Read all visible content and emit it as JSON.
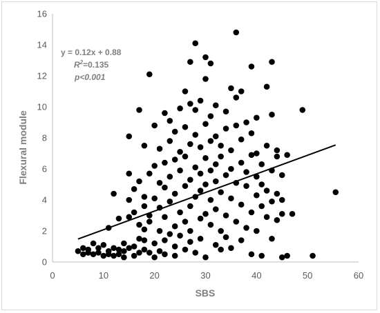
{
  "chart_data": {
    "type": "scatter",
    "title": "",
    "xlabel": "SBS",
    "ylabel": "Flexural module",
    "xlim": [
      0,
      60
    ],
    "ylim": [
      0,
      16
    ],
    "x_ticks": [
      "0",
      "10",
      "20",
      "30",
      "40",
      "50",
      "60"
    ],
    "y_ticks": [
      "0",
      "2",
      "4",
      "6",
      "8",
      "10",
      "12",
      "14",
      "16"
    ],
    "grid": false,
    "legend": "none",
    "point_color": "#000000",
    "trendline": {
      "type": "linear",
      "slope": 0.12,
      "intercept": 0.88,
      "x_range": [
        5,
        55.5
      ],
      "color": "#000000"
    },
    "annotation": {
      "equation": "y = 0.12x + 0.88",
      "r2_label": "R",
      "r2_sup": "2",
      "r2_value": "=0.135",
      "p_value": "p<0.001"
    },
    "points": [
      [
        5,
        0.7
      ],
      [
        6,
        0.9
      ],
      [
        6,
        0.5
      ],
      [
        7,
        0.8
      ],
      [
        7,
        0.6
      ],
      [
        8,
        1.2
      ],
      [
        8,
        0.5
      ],
      [
        9,
        0.9
      ],
      [
        9,
        0.6
      ],
      [
        10,
        1.1
      ],
      [
        10,
        0.4
      ],
      [
        11,
        0.7
      ],
      [
        11,
        0.5
      ],
      [
        11,
        2.2
      ],
      [
        12,
        0.9
      ],
      [
        12,
        0.4
      ],
      [
        12,
        4.4
      ],
      [
        13,
        0.8
      ],
      [
        13,
        0.5
      ],
      [
        13,
        2.8
      ],
      [
        14,
        0.7
      ],
      [
        14,
        0.3
      ],
      [
        14,
        1.2
      ],
      [
        15,
        0.9
      ],
      [
        15,
        2.9
      ],
      [
        15,
        4.0
      ],
      [
        15,
        5.7
      ],
      [
        15,
        8.1
      ],
      [
        16,
        1.0
      ],
      [
        16,
        0.4
      ],
      [
        16,
        3.2
      ],
      [
        16,
        4.7
      ],
      [
        17,
        1.5
      ],
      [
        17,
        0.6
      ],
      [
        17,
        5.2
      ],
      [
        17,
        9.8
      ],
      [
        17,
        2.4
      ],
      [
        18,
        0.8
      ],
      [
        18,
        2.1
      ],
      [
        18,
        3.6
      ],
      [
        18,
        7.5
      ],
      [
        18,
        4.2
      ],
      [
        18,
        1.4
      ],
      [
        19,
        12.1
      ],
      [
        19,
        3.0
      ],
      [
        19,
        5.7
      ],
      [
        19,
        0.6
      ],
      [
        19,
        2.6
      ],
      [
        20,
        1.2
      ],
      [
        20,
        4.1
      ],
      [
        20,
        6.2
      ],
      [
        20,
        8.8
      ],
      [
        20,
        0.3
      ],
      [
        21,
        2.0
      ],
      [
        21,
        3.5
      ],
      [
        21,
        5.1
      ],
      [
        21,
        7.3
      ],
      [
        21,
        0.7
      ],
      [
        22,
        1.4
      ],
      [
        22,
        4.8
      ],
      [
        22,
        6.4
      ],
      [
        22,
        9.6
      ],
      [
        22,
        2.9
      ],
      [
        22,
        0.5
      ],
      [
        23,
        1.8
      ],
      [
        23,
        3.9
      ],
      [
        23,
        5.5
      ],
      [
        23,
        7.8
      ],
      [
        23,
        9.1
      ],
      [
        24,
        0.4
      ],
      [
        24,
        2.3
      ],
      [
        24,
        4.4
      ],
      [
        24,
        6.6
      ],
      [
        24,
        8.4
      ],
      [
        24,
        1.0
      ],
      [
        25,
        9.9
      ],
      [
        25,
        3.2
      ],
      [
        25,
        5.9
      ],
      [
        25,
        7.1
      ],
      [
        25,
        1.7
      ],
      [
        26,
        11.0
      ],
      [
        26,
        2.6
      ],
      [
        26,
        4.9
      ],
      [
        26,
        6.8
      ],
      [
        26,
        8.7
      ],
      [
        26,
        0.8
      ],
      [
        27,
        10.2
      ],
      [
        27,
        3.6
      ],
      [
        27,
        5.3
      ],
      [
        27,
        7.6
      ],
      [
        27,
        1.3
      ],
      [
        27,
        2.0
      ],
      [
        27,
        12.9
      ],
      [
        28,
        14.1
      ],
      [
        28,
        4.2
      ],
      [
        28,
        6.1
      ],
      [
        28,
        8.2
      ],
      [
        28,
        9.8
      ],
      [
        28,
        0.6
      ],
      [
        29,
        2.8
      ],
      [
        29,
        4.6
      ],
      [
        29,
        5.7
      ],
      [
        29,
        7.4
      ],
      [
        29,
        10.4
      ],
      [
        29,
        1.5
      ],
      [
        30,
        13.2
      ],
      [
        30,
        11.8
      ],
      [
        30,
        3.1
      ],
      [
        30,
        5.0
      ],
      [
        30,
        6.7
      ],
      [
        30,
        8.9
      ],
      [
        30,
        0.3
      ],
      [
        31,
        2.4
      ],
      [
        31,
        4.0
      ],
      [
        31,
        5.9
      ],
      [
        31,
        7.8
      ],
      [
        31,
        9.4
      ],
      [
        31,
        12.8
      ],
      [
        32,
        1.1
      ],
      [
        32,
        3.4
      ],
      [
        32,
        5.2
      ],
      [
        32,
        6.3
      ],
      [
        32,
        8.1
      ],
      [
        32,
        10.1
      ],
      [
        33,
        2.0
      ],
      [
        33,
        4.5
      ],
      [
        33,
        6.8
      ],
      [
        33,
        7.5
      ],
      [
        33,
        0.8
      ],
      [
        34,
        3.0
      ],
      [
        34,
        5.6
      ],
      [
        34,
        8.6
      ],
      [
        34,
        9.7
      ],
      [
        34,
        1.6
      ],
      [
        35,
        11.2
      ],
      [
        35,
        4.1
      ],
      [
        35,
        6.0
      ],
      [
        35,
        7.2
      ],
      [
        35,
        0.9
      ],
      [
        36,
        14.8
      ],
      [
        36,
        2.6
      ],
      [
        36,
        5.1
      ],
      [
        36,
        8.8
      ],
      [
        36,
        10.6
      ],
      [
        37,
        11.0
      ],
      [
        37,
        3.7
      ],
      [
        37,
        6.4
      ],
      [
        37,
        7.9
      ],
      [
        37,
        1.4
      ],
      [
        38,
        2.2
      ],
      [
        38,
        4.9
      ],
      [
        38,
        5.8
      ],
      [
        38,
        9.0
      ],
      [
        39,
        12.6
      ],
      [
        39,
        3.2
      ],
      [
        39,
        6.9
      ],
      [
        39,
        8.3
      ],
      [
        39,
        0.5
      ],
      [
        40,
        9.3
      ],
      [
        40,
        4.3
      ],
      [
        40,
        5.5
      ],
      [
        40,
        2.0
      ],
      [
        40,
        7.0
      ],
      [
        41,
        3.6
      ],
      [
        41,
        5.0
      ],
      [
        41,
        6.3
      ],
      [
        41,
        0.4
      ],
      [
        42,
        11.3
      ],
      [
        42,
        2.9
      ],
      [
        42,
        4.6
      ],
      [
        42,
        7.5
      ],
      [
        43,
        12.9
      ],
      [
        43,
        9.5
      ],
      [
        43,
        3.9
      ],
      [
        43,
        5.9
      ],
      [
        43,
        1.5
      ],
      [
        44,
        6.8
      ],
      [
        44,
        4.4
      ],
      [
        44,
        2.7
      ],
      [
        44,
        7.2
      ],
      [
        45,
        3.1
      ],
      [
        45,
        5.6
      ],
      [
        45,
        0.3
      ],
      [
        45,
        4.0
      ],
      [
        46,
        6.9
      ],
      [
        46,
        0.4
      ],
      [
        47,
        3.1
      ],
      [
        49,
        9.8
      ],
      [
        51,
        0.4
      ],
      [
        55.5,
        4.5
      ]
    ]
  }
}
